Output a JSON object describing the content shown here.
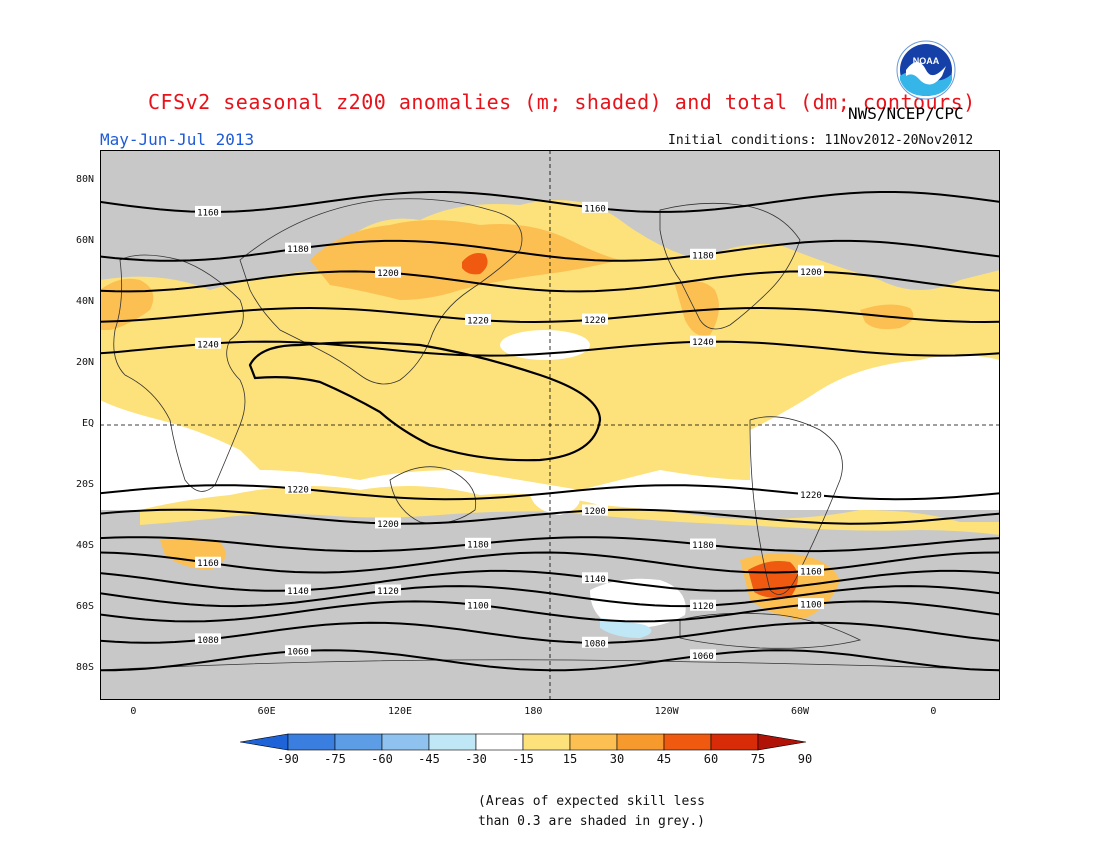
{
  "header": {
    "title": "CFSv2 seasonal z200 anomalies (m; shaded) and total (dm; contours)",
    "season": "May-Jun-Jul 2013",
    "org": "NWS/NCEP/CPC",
    "initial_conditions": "Initial conditions: 11Nov2012-20Nov2012",
    "logo_text": "NOAA"
  },
  "axes": {
    "lat_ticks": [
      {
        "label": "80N",
        "lat": 80
      },
      {
        "label": "60N",
        "lat": 60
      },
      {
        "label": "40N",
        "lat": 40
      },
      {
        "label": "20N",
        "lat": 20
      },
      {
        "label": "EQ",
        "lat": 0
      },
      {
        "label": "20S",
        "lat": -20
      },
      {
        "label": "40S",
        "lat": -40
      },
      {
        "label": "60S",
        "lat": -60
      },
      {
        "label": "80S",
        "lat": -80
      }
    ],
    "lon_ticks": [
      {
        "label": "0",
        "lon": 0
      },
      {
        "label": "60E",
        "lon": 60
      },
      {
        "label": "120E",
        "lon": 120
      },
      {
        "label": "180",
        "lon": 180
      },
      {
        "label": "120W",
        "lon": 240
      },
      {
        "label": "60W",
        "lon": 300
      },
      {
        "label": "0",
        "lon": 360
      }
    ]
  },
  "contours": [
    {
      "value": "1160",
      "lat": 73
    },
    {
      "value": "1180",
      "lat": 57
    },
    {
      "value": "1200",
      "lat": 47
    },
    {
      "value": "1220",
      "lat": 36
    },
    {
      "value": "1240",
      "lat": 25
    },
    {
      "value": "1220",
      "lat": -22
    },
    {
      "value": "1200",
      "lat": -30
    },
    {
      "value": "1180",
      "lat": -39
    },
    {
      "value": "1160",
      "lat": -45
    },
    {
      "value": "1140",
      "lat": -51
    },
    {
      "value": "1120",
      "lat": -56
    },
    {
      "value": "1100",
      "lat": -61
    },
    {
      "value": "1080",
      "lat": -68
    },
    {
      "value": "1060",
      "lat": -77
    }
  ],
  "colorbar": {
    "ticks": [
      "-90",
      "-75",
      "-60",
      "-45",
      "-30",
      "-15",
      "15",
      "30",
      "45",
      "60",
      "75",
      "90"
    ],
    "colors": [
      "#1e64d8",
      "#3a7fe0",
      "#5d9de6",
      "#8fc2ee",
      "#bfe7f5",
      "#ffffff",
      "#fde17a",
      "#fcc052",
      "#f79a2e",
      "#f05a10",
      "#d82b08",
      "#b01208"
    ]
  },
  "note": {
    "line1": "(Areas of expected skill less",
    "line2": "than 0.3 are shaded in grey.)"
  }
}
